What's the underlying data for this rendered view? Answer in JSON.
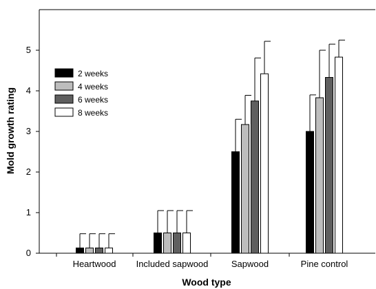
{
  "chart_data": {
    "type": "bar",
    "xlabel": "Wood type",
    "ylabel": "Mold growth rating",
    "ylim": [
      0,
      6
    ],
    "yticks": [
      0,
      1,
      2,
      3,
      4,
      5
    ],
    "legend_position": "top-left",
    "categories": [
      "Heartwood",
      "Included sapwood",
      "Sapwood",
      "Pine control"
    ],
    "series": [
      {
        "name": "2 weeks",
        "color": "#000000",
        "values": [
          0.13,
          0.5,
          2.5,
          3.0
        ],
        "errors": [
          0.35,
          0.55,
          0.8,
          0.9
        ]
      },
      {
        "name": "4 weeks",
        "color": "#bdbdbd",
        "values": [
          0.13,
          0.5,
          3.17,
          3.83
        ],
        "errors": [
          0.35,
          0.55,
          0.72,
          1.17
        ]
      },
      {
        "name": "6 weeks",
        "color": "#5f5f5f",
        "values": [
          0.13,
          0.5,
          3.75,
          4.33
        ],
        "errors": [
          0.35,
          0.55,
          1.06,
          0.82
        ]
      },
      {
        "name": "8 weeks",
        "color": "#ffffff",
        "values": [
          0.13,
          0.5,
          4.42,
          4.83
        ],
        "errors": [
          0.35,
          0.55,
          0.8,
          0.42
        ]
      }
    ]
  }
}
